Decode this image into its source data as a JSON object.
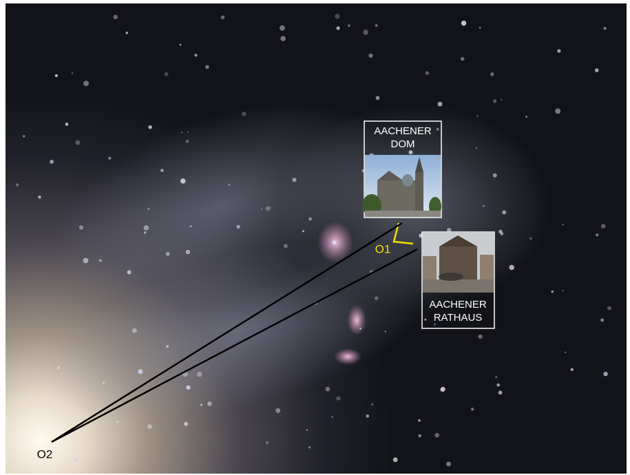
{
  "scene": {
    "landmarks": [
      {
        "label_lines": [
          "AACHENER",
          "DOM"
        ]
      },
      {
        "label_lines": [
          "AACHENER",
          "RATHAUS"
        ]
      }
    ],
    "observers": [
      "O1",
      "O2"
    ]
  }
}
